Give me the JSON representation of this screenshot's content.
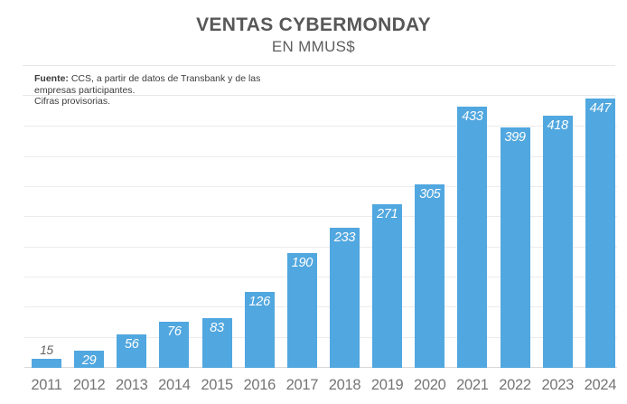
{
  "source_note": {
    "label": "Fuente:",
    "line1": "CCS, a partir de datos de Transbank y de las",
    "line2": "empresas participantes.",
    "line3": "Cifras provisorias."
  },
  "chart_data": {
    "type": "bar",
    "title": "VENTAS CYBERMONDAY",
    "subtitle": "EN MMUS$",
    "categories": [
      "2011",
      "2012",
      "2013",
      "2014",
      "2015",
      "2016",
      "2017",
      "2018",
      "2019",
      "2020",
      "2021",
      "2022",
      "2023",
      "2024"
    ],
    "values": [
      15,
      29,
      56,
      76,
      83,
      126,
      190,
      233,
      271,
      305,
      433,
      399,
      418,
      447
    ],
    "xlabel": "",
    "ylabel": "",
    "ylim": [
      0,
      450
    ],
    "grid_step": 50,
    "grid": true,
    "legend": false,
    "y_axis_labels_visible": false,
    "value_labels_visible": true,
    "bar_color": "#51a7df",
    "gridline_color": "#ebebeb",
    "baseline_color": "#d8d8d8",
    "value_label_color_inside": "#ffffff",
    "value_label_color_outside": "#616161",
    "year_label_color": "#757575"
  }
}
